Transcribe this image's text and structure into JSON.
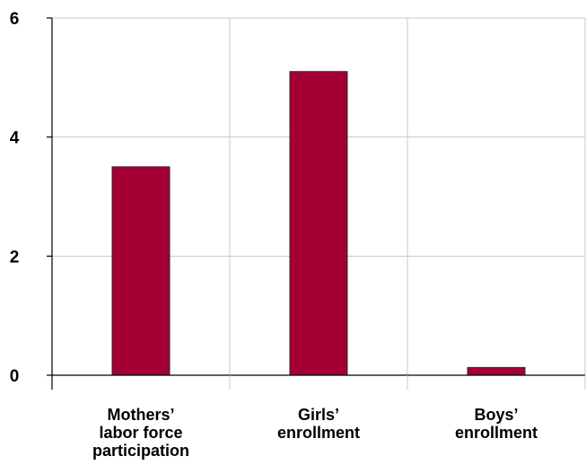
{
  "chart_data": {
    "type": "bar",
    "title": "",
    "xlabel": "",
    "ylabel": "",
    "categories": [
      [
        "Mothers’",
        "labor force",
        "participation"
      ],
      [
        "Girls’",
        "enrollment"
      ],
      [
        "Boys’",
        "enrollment"
      ]
    ],
    "values": [
      3.5,
      5.1,
      0.13
    ],
    "ylim": [
      0,
      6
    ],
    "yticks": [
      0,
      2,
      4,
      6
    ],
    "grid": true,
    "legend": "none",
    "bar_color": "#a50034",
    "grid_color": "#c8c8c8"
  }
}
